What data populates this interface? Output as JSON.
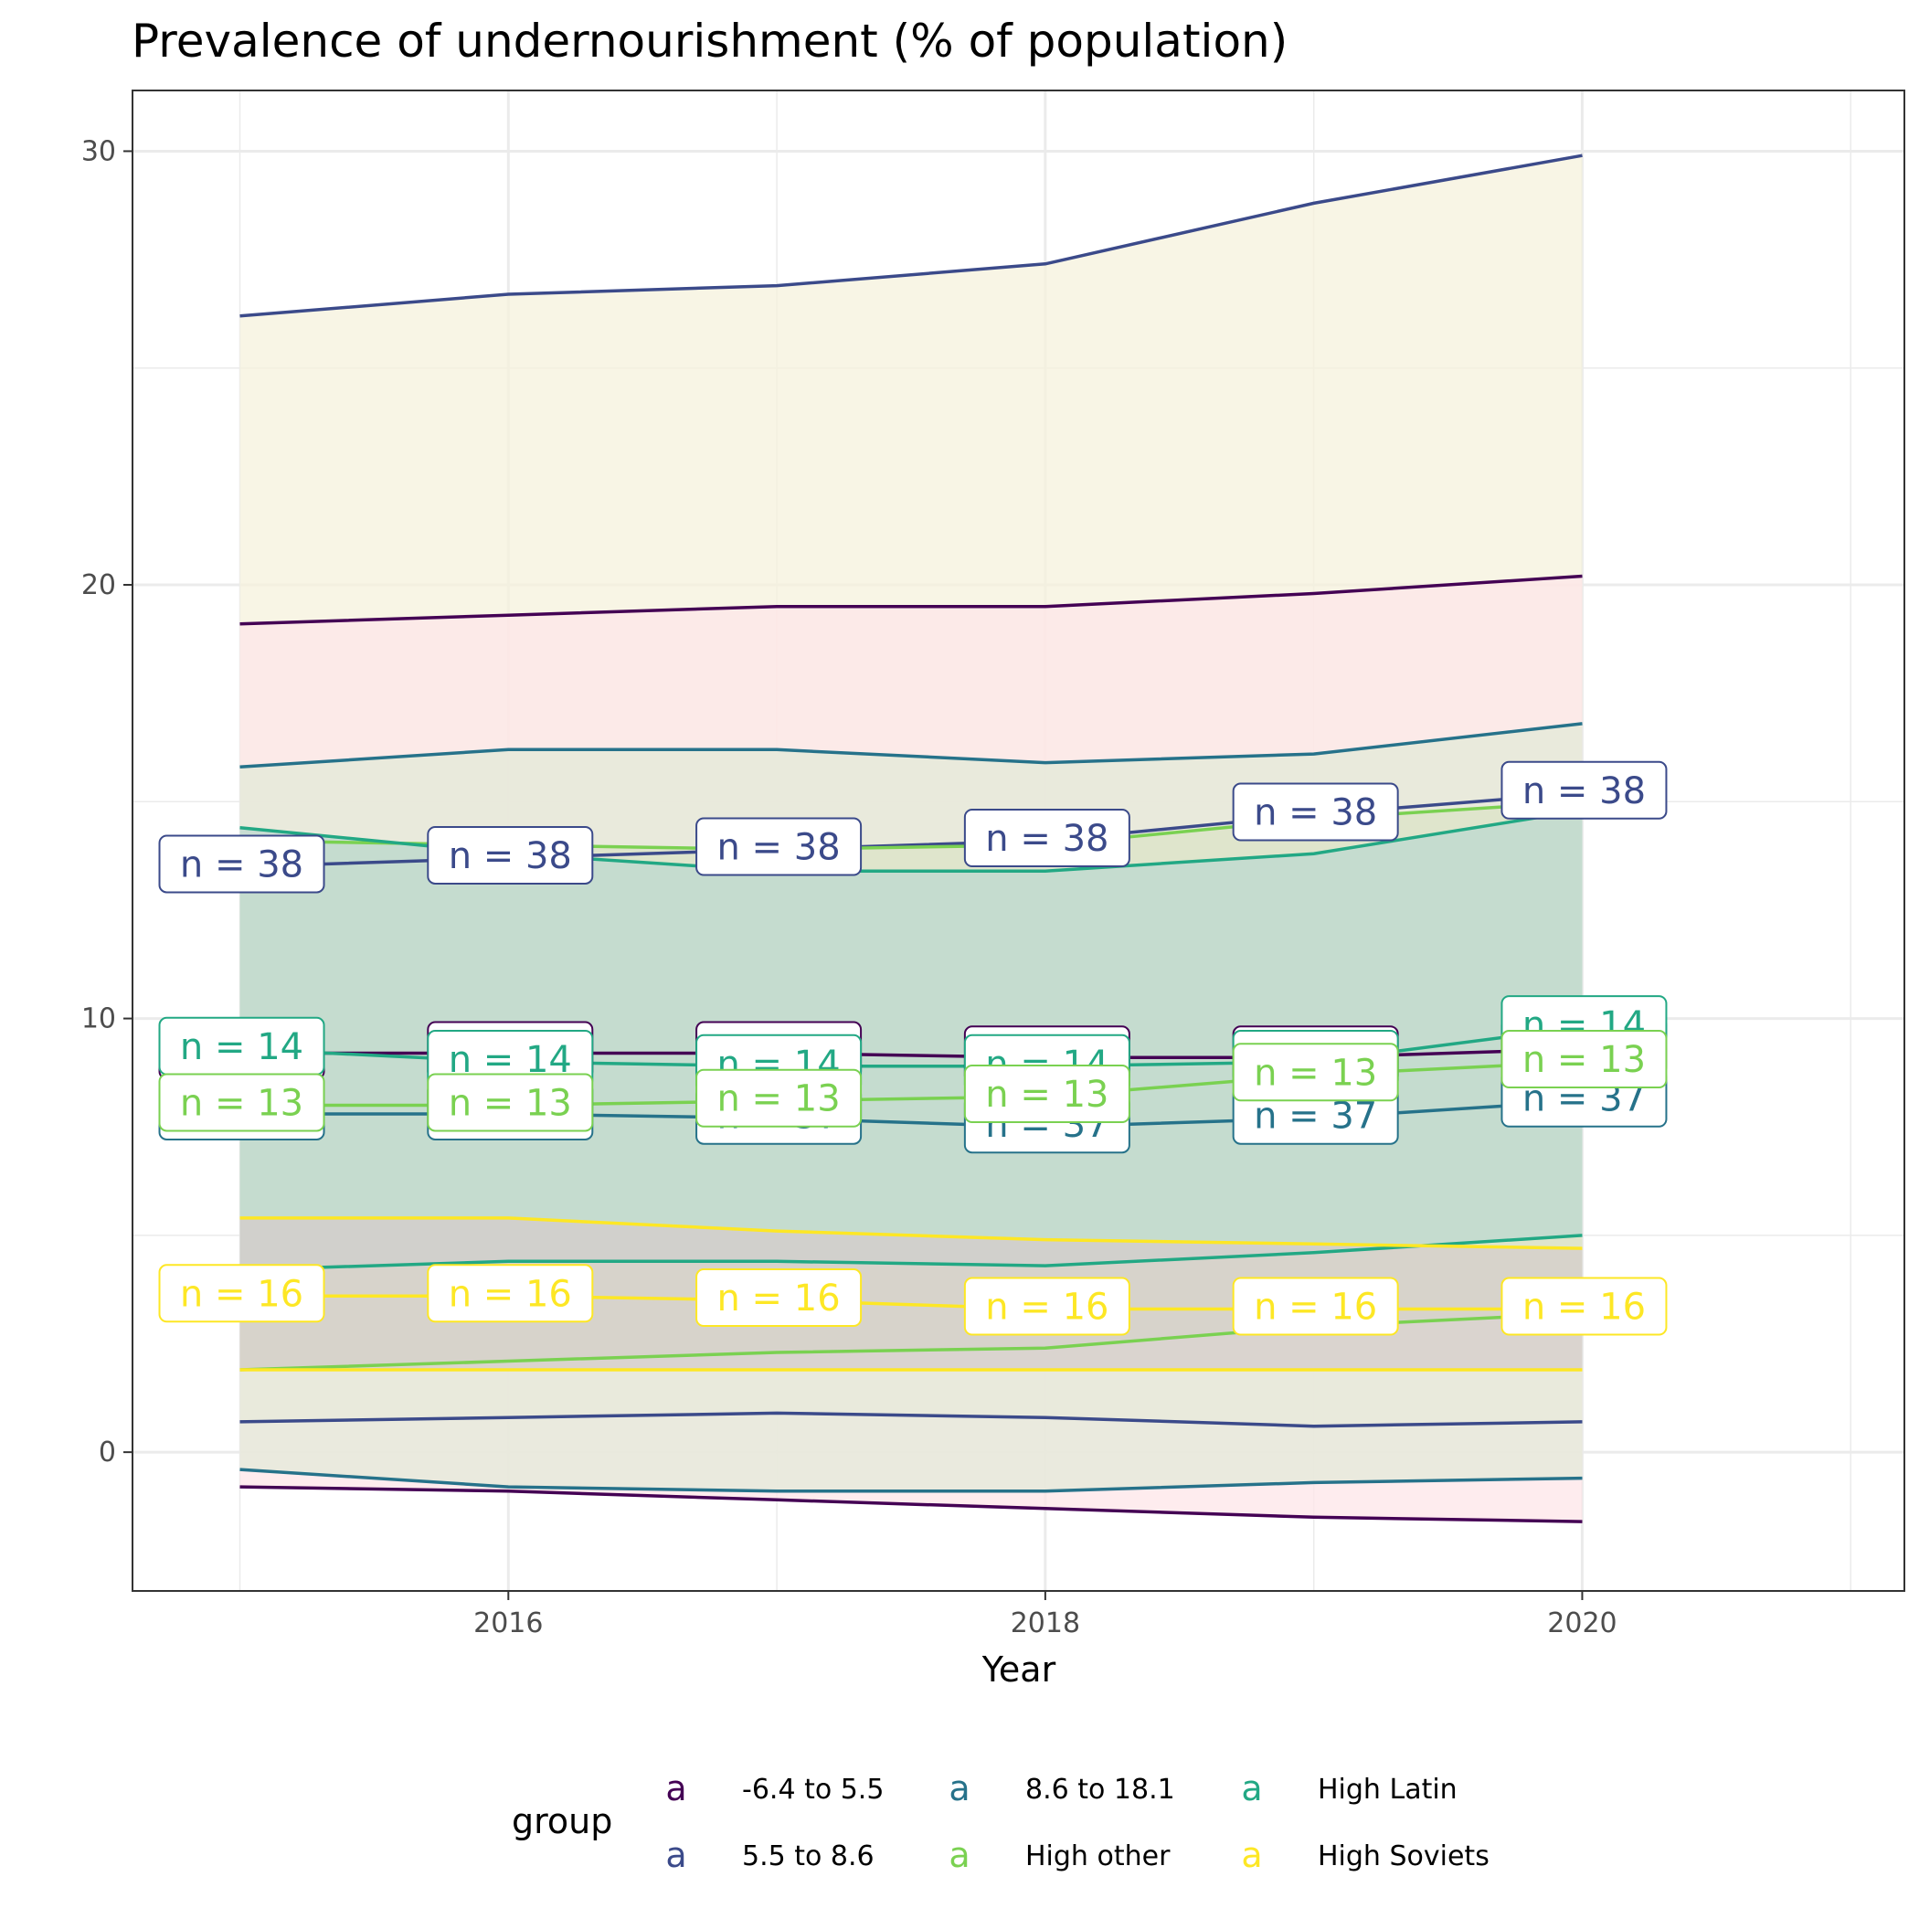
{
  "chart_data": {
    "type": "area",
    "title": "Prevalence of undernourishment (% of population)",
    "xlabel": "Year",
    "ylabel": "",
    "xlim": [
      2014.6,
      2021.2
    ],
    "ylim": [
      -3.2,
      31.4
    ],
    "x_ticks": [
      2016,
      2018,
      2020
    ],
    "y_ticks": [
      0,
      10,
      20,
      30
    ],
    "grid": true,
    "legend": {
      "title": "group",
      "position": "bottom",
      "glyph": "a",
      "entries": [
        "-6.4 to 5.5",
        "5.5 to 8.6",
        "8.6 to 18.1",
        "High other",
        "High Latin",
        "High Soviets"
      ]
    },
    "x": [
      2015,
      2016,
      2017,
      2018,
      2019,
      2020
    ],
    "series": [
      {
        "name": "-6.4 to 5.5",
        "color": "#440154",
        "fill": "#fde6e8",
        "mean": [
          9.2,
          9.2,
          9.2,
          9.1,
          9.1,
          9.3
        ],
        "upper": [
          19.1,
          19.3,
          19.5,
          19.5,
          19.8,
          20.2
        ],
        "lower": [
          -0.8,
          -0.9,
          -1.1,
          -1.3,
          -1.5,
          -1.6
        ],
        "labels": [
          "n = 38",
          "n = 38",
          "n = 38",
          "n = 38",
          "n = 38",
          "n = 38"
        ]
      },
      {
        "name": "5.5 to 8.6",
        "color": "#3b4a8a",
        "fill": "#f5f2dc",
        "mean": [
          13.5,
          13.7,
          13.9,
          14.1,
          14.7,
          15.2
        ],
        "upper": [
          26.2,
          26.7,
          26.9,
          27.4,
          28.8,
          29.9
        ],
        "lower": [
          0.7,
          0.8,
          0.9,
          0.8,
          0.6,
          0.7
        ],
        "labels": [
          "n = 38",
          "n = 38",
          "n = 38",
          "n = 38",
          "n = 38",
          "n = 38"
        ]
      },
      {
        "name": "8.6 to 18.1",
        "color": "#26728a",
        "fill": "#e3e9d8",
        "mean": [
          7.8,
          7.8,
          7.7,
          7.5,
          7.7,
          8.1
        ],
        "upper": [
          15.8,
          16.2,
          16.2,
          15.9,
          16.1,
          16.8
        ],
        "lower": [
          -0.4,
          -0.8,
          -0.9,
          -0.9,
          -0.7,
          -0.6
        ],
        "labels": [
          "n = 37",
          "n = 37",
          "n = 37",
          "n = 37",
          "n = 37",
          "n = 37"
        ]
      },
      {
        "name": "High other",
        "color": "#7ad151",
        "fill": "#dbe3c7",
        "mean": [
          8.0,
          8.0,
          8.1,
          8.2,
          8.7,
          9.0
        ],
        "upper": [
          14.1,
          14.0,
          13.9,
          14.0,
          14.6,
          15.0
        ],
        "lower": [
          1.9,
          2.1,
          2.3,
          2.4,
          2.9,
          3.2
        ],
        "labels": [
          "n = 13",
          "n = 13",
          "n = 13",
          "n = 13",
          "n = 13",
          "n = 13"
        ]
      },
      {
        "name": "High Latin",
        "color": "#22a884",
        "fill": "#bcd8d0",
        "mean": [
          9.3,
          9.0,
          8.9,
          8.9,
          9.0,
          9.8
        ],
        "upper": [
          14.4,
          13.8,
          13.4,
          13.4,
          13.8,
          14.8
        ],
        "lower": [
          4.2,
          4.4,
          4.4,
          4.3,
          4.6,
          5.0
        ],
        "labels": [
          "n = 14",
          "n = 14",
          "n = 14",
          "n = 14",
          "n = 14",
          "n = 14"
        ]
      },
      {
        "name": "High Soviets",
        "color": "#fde725",
        "fill": "#d4cccb",
        "mean": [
          3.6,
          3.6,
          3.5,
          3.3,
          3.3,
          3.3
        ],
        "upper": [
          5.4,
          5.4,
          5.1,
          4.9,
          4.8,
          4.7
        ],
        "lower": [
          1.9,
          1.9,
          1.9,
          1.9,
          1.9,
          1.9
        ],
        "labels": [
          "n = 16",
          "n = 16",
          "n = 16",
          "n = 16",
          "n = 16",
          "n = 16"
        ]
      }
    ]
  }
}
